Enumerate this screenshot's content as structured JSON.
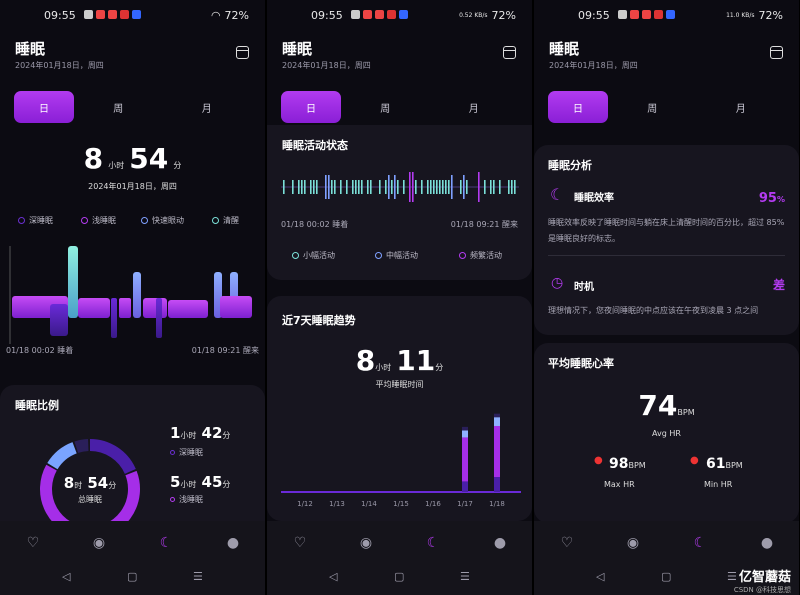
{
  "status": {
    "time": "09:55",
    "battery": "72%",
    "net1": "0.52 KB/s",
    "net2": "11.0 KB/s"
  },
  "header": {
    "title": "睡眠",
    "date": "2024年01月18日，周四"
  },
  "tabs": [
    "日",
    "周",
    "月"
  ],
  "screen1": {
    "hours": "8",
    "hours_unit": "小时",
    "minutes": "54",
    "minutes_unit": "分",
    "date": "2024年01月18日，周四",
    "legend": [
      {
        "label": "深睡眠",
        "color": "#6a2fd0"
      },
      {
        "label": "浅睡眠",
        "color": "#b33bf0"
      },
      {
        "label": "快速眼动",
        "color": "#7fa0ff"
      },
      {
        "label": "清醒",
        "color": "#7be0d8"
      }
    ],
    "start_label": "01/18 00:02 睡着",
    "end_label": "01/18 09:21 醒来",
    "ratio_title": "睡眠比例",
    "donut": {
      "hours": "8",
      "hours_unit": "时",
      "minutes": "54",
      "minutes_unit": "分",
      "label": "总睡眠",
      "segments": [
        {
          "name": "深睡眠",
          "minutes": 102,
          "color": "#4a1fa8"
        },
        {
          "name": "浅睡眠",
          "minutes": 345,
          "color": "#a52ee8"
        },
        {
          "name": "快速眼动",
          "minutes": 60,
          "color": "#7aa4ff"
        },
        {
          "name": "清醒",
          "minutes": 27,
          "color": "#2a1f5a"
        }
      ]
    },
    "deep": {
      "h": "1",
      "h_unit": "小时",
      "m": "42",
      "m_unit": "分",
      "label": "深睡眠"
    },
    "light": {
      "h": "5",
      "h_unit": "小时",
      "m": "45",
      "m_unit": "分",
      "label": "浅睡眠"
    }
  },
  "screen2": {
    "activity_title": "睡眠活动状态",
    "start_label": "01/18 00:02 睡着",
    "end_label": "01/18 09:21 醒来",
    "legend": [
      {
        "label": "小幅活动",
        "color": "#7be0d8"
      },
      {
        "label": "中幅活动",
        "color": "#7fa0ff"
      },
      {
        "label": "频繁活动",
        "color": "#b33bf0"
      }
    ],
    "trend_title": "近7天睡眠趋势",
    "hours": "8",
    "hours_unit": "小时",
    "minutes": "11",
    "minutes_unit": "分",
    "avg_label": "平均睡眠时间"
  },
  "chart_data": {
    "type": "bar",
    "categories": [
      "1/12",
      "1/13",
      "1/14",
      "1/15",
      "1/16",
      "1/17",
      "1/18"
    ],
    "series": [
      {
        "name": "深睡眠",
        "values": [
          0,
          0,
          0,
          0,
          0,
          1.2,
          1.7
        ]
      },
      {
        "name": "浅睡眠",
        "values": [
          0,
          0,
          0,
          0,
          0,
          5.0,
          5.8
        ]
      },
      {
        "name": "快速眼动",
        "values": [
          0,
          0,
          0,
          0,
          0,
          0.8,
          1.0
        ]
      },
      {
        "name": "清醒",
        "values": [
          0,
          0,
          0,
          0,
          0,
          0.4,
          0.4
        ]
      }
    ],
    "ylim": [
      0,
      10
    ]
  },
  "screen3": {
    "analysis_title": "睡眠分析",
    "efficiency_label": "睡眠效率",
    "efficiency_value": "95",
    "efficiency_unit": "%",
    "efficiency_desc": "睡眠效率反映了睡眠时间与躺在床上清醒时间的百分比，超过 85% 是睡眠良好的标志。",
    "timing_label": "时机",
    "timing_value": "差",
    "timing_desc": "理想情况下，您夜间睡眠的中点应该在午夜到凌晨 3 点之间",
    "hr_title": "平均睡眠心率",
    "avg_hr": "74",
    "avg_unit": "BPM",
    "avg_label": "Avg HR",
    "max_hr": "98",
    "max_unit": "BPM",
    "max_label": "Max HR",
    "min_hr": "61",
    "min_unit": "BPM",
    "min_label": "Min HR"
  },
  "watermark": {
    "brand": "亿智蘑菇",
    "sub": "CSDN @科技思想"
  }
}
